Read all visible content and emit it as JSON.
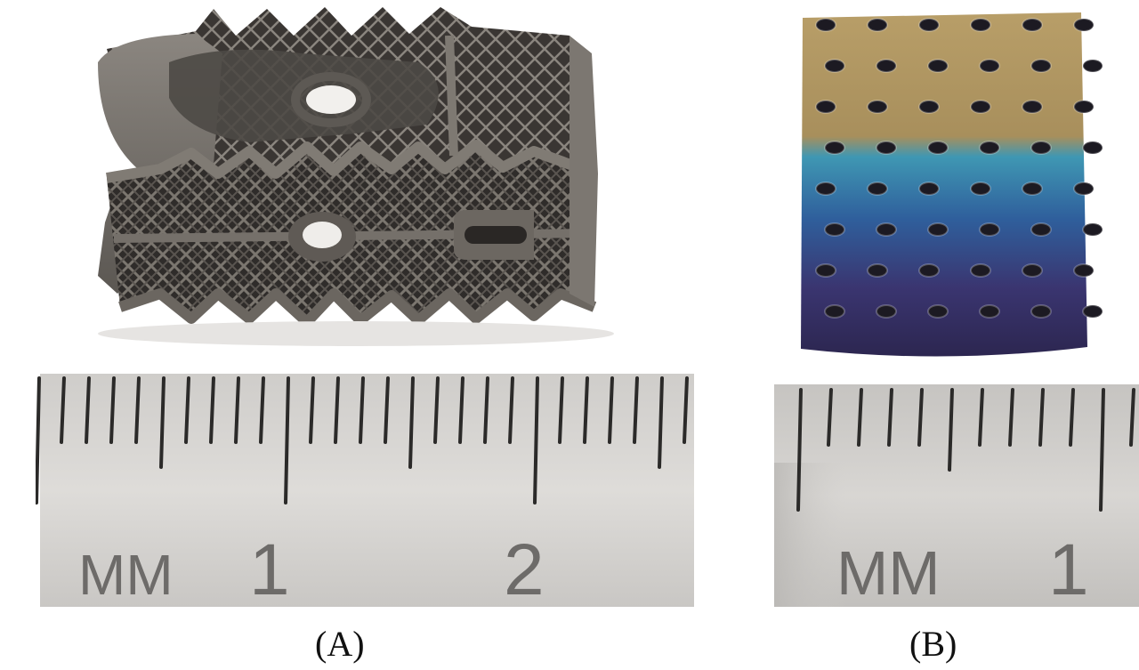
{
  "panels": [
    {
      "id": "A",
      "caption": "(A)",
      "ruler": {
        "unit_label": "MM",
        "numbers": [
          "1",
          "2"
        ]
      },
      "object": "lattice-implant-cage",
      "colors": {
        "metal": "#6f6a65",
        "metal_dark": "#3a3734",
        "ruler": "#d6d4d1"
      }
    },
    {
      "id": "B",
      "caption": "(B)",
      "ruler": {
        "unit_label": "MM",
        "numbers": [
          "1"
        ]
      },
      "object": "anodized-lattice-cube",
      "colors": {
        "gold": "#b59a64",
        "teal": "#3b86a6",
        "blue": "#2c4f8e",
        "violet": "#3b2f66",
        "ruler": "#cfcdca"
      }
    }
  ]
}
